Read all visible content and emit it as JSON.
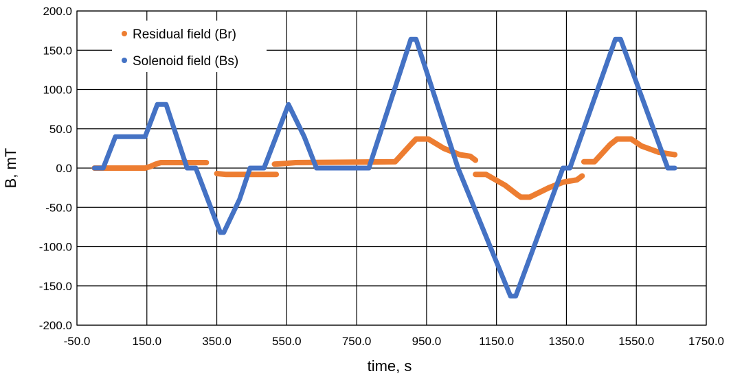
{
  "chart_data": {
    "type": "scatter",
    "title": "",
    "xlabel": "time, s",
    "ylabel": "B, mT",
    "xlim": [
      -50,
      1750
    ],
    "ylim": [
      -200,
      200
    ],
    "xticks": [
      -50,
      150,
      350,
      550,
      750,
      950,
      1150,
      1350,
      1550,
      1750
    ],
    "yticks": [
      -200,
      -150,
      -100,
      -50,
      0,
      50,
      100,
      150,
      200
    ],
    "xtick_labels": [
      "-50.0",
      "150.0",
      "350.0",
      "550.0",
      "750.0",
      "950.0",
      "1150.0",
      "1350.0",
      "1550.0",
      "1750.0"
    ],
    "ytick_labels": [
      "-200.0",
      "-150.0",
      "-100.0",
      "-50.0",
      "0.0",
      "50.0",
      "100.0",
      "150.0",
      "200.0"
    ],
    "grid": true,
    "legend_position": "top-left",
    "series": [
      {
        "name": "Residual field (Br)",
        "color": "#ED7D31",
        "segments": [
          [
            [
              0,
              0
            ],
            [
              145,
              0
            ],
            [
              160,
              2
            ],
            [
              175,
              5
            ],
            [
              190,
              7
            ],
            [
              320,
              7
            ]
          ],
          [
            [
              350,
              -7
            ],
            [
              375,
              -8
            ],
            [
              520,
              -8
            ]
          ],
          [
            [
              515,
              5
            ],
            [
              550,
              6
            ],
            [
              575,
              7
            ],
            [
              860,
              8
            ],
            [
              905,
              30
            ],
            [
              920,
              37
            ],
            [
              955,
              37
            ],
            [
              1000,
              25
            ],
            [
              1045,
              17
            ],
            [
              1075,
              15
            ],
            [
              1090,
              10
            ]
          ],
          [
            [
              1090,
              -8
            ],
            [
              1120,
              -8
            ],
            [
              1175,
              -22
            ],
            [
              1210,
              -34
            ],
            [
              1220,
              -37
            ],
            [
              1245,
              -37
            ],
            [
              1300,
              -25
            ],
            [
              1340,
              -18
            ],
            [
              1380,
              -15
            ],
            [
              1395,
              -10
            ]
          ],
          [
            [
              1400,
              8
            ],
            [
              1430,
              8
            ],
            [
              1475,
              30
            ],
            [
              1495,
              37
            ],
            [
              1535,
              37
            ],
            [
              1565,
              28
            ],
            [
              1615,
              20
            ],
            [
              1660,
              17
            ]
          ]
        ]
      },
      {
        "name": "Solenoid field (Bs)",
        "color": "#4472C4",
        "segments": [
          [
            [
              0,
              0
            ],
            [
              25,
              0
            ],
            [
              60,
              40
            ],
            [
              75,
              40
            ],
            [
              95,
              40
            ],
            [
              110,
              40
            ],
            [
              120,
              40
            ],
            [
              135,
              40
            ],
            [
              145,
              40
            ],
            [
              180,
              81
            ],
            [
              205,
              81
            ],
            [
              265,
              0
            ],
            [
              290,
              0
            ],
            [
              360,
              -82
            ],
            [
              370,
              -82
            ],
            [
              415,
              -40
            ],
            [
              445,
              0
            ],
            [
              485,
              0
            ],
            [
              555,
              81
            ],
            [
              600,
              40
            ],
            [
              635,
              0
            ],
            [
              665,
              0
            ],
            [
              785,
              0
            ],
            [
              905,
              164
            ],
            [
              920,
              164
            ],
            [
              1040,
              0
            ],
            [
              1190,
              -163
            ],
            [
              1205,
              -163
            ],
            [
              1340,
              0
            ],
            [
              1360,
              0
            ],
            [
              1490,
              164
            ],
            [
              1505,
              164
            ],
            [
              1640,
              0
            ],
            [
              1660,
              0
            ]
          ]
        ]
      }
    ]
  }
}
